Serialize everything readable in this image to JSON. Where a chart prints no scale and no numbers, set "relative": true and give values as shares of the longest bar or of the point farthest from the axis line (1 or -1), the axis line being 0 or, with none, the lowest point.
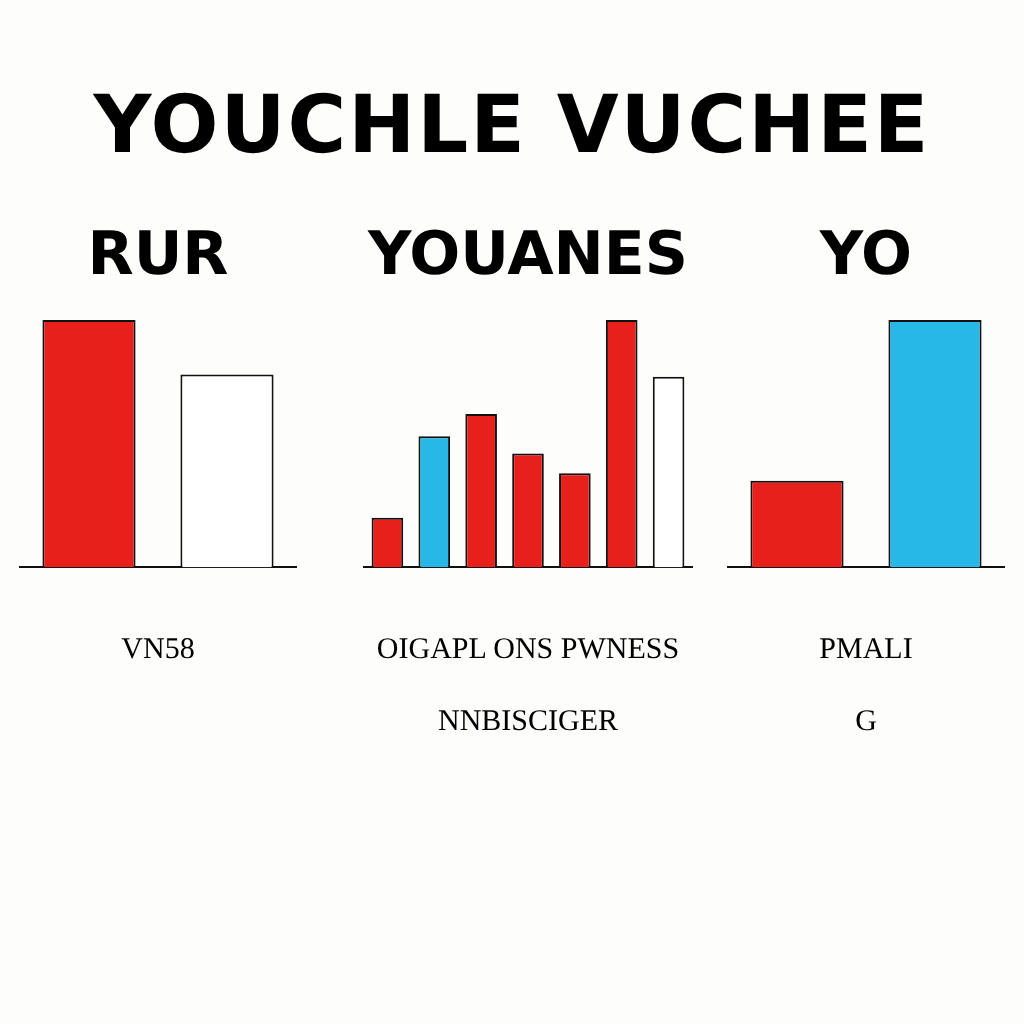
{
  "chart_data": [
    {
      "type": "bar",
      "title": "YOUCHLE VUCHEE",
      "subtitle": "RUR",
      "categories": [
        null,
        null
      ],
      "relative": true,
      "colors": [
        "#e8201c",
        "#ffffff"
      ],
      "values": [
        1,
        0.78
      ],
      "annotations": [
        "VN58"
      ]
    },
    {
      "type": "bar",
      "subtitle": "YOUANES",
      "categories": [
        null,
        null,
        null,
        null,
        null,
        null,
        null
      ],
      "relative": true,
      "colors": [
        "#e8201c",
        "#27b8e8",
        "#e8201c",
        "#e8201c",
        "#e8201c",
        "#e8201c",
        "#ffffff"
      ],
      "values": [
        0.2,
        0.53,
        0.62,
        0.46,
        0.38,
        1,
        0.77
      ],
      "annotations": [
        "OIGAPL ONS PWNESS",
        "NNBISCIGER"
      ]
    },
    {
      "type": "bar",
      "subtitle": "YO",
      "categories": [
        null,
        null
      ],
      "relative": true,
      "colors": [
        "#e8201c",
        "#27b8e8"
      ],
      "values": [
        0.35,
        1
      ],
      "annotations": [
        "PMALI",
        "G"
      ]
    }
  ]
}
